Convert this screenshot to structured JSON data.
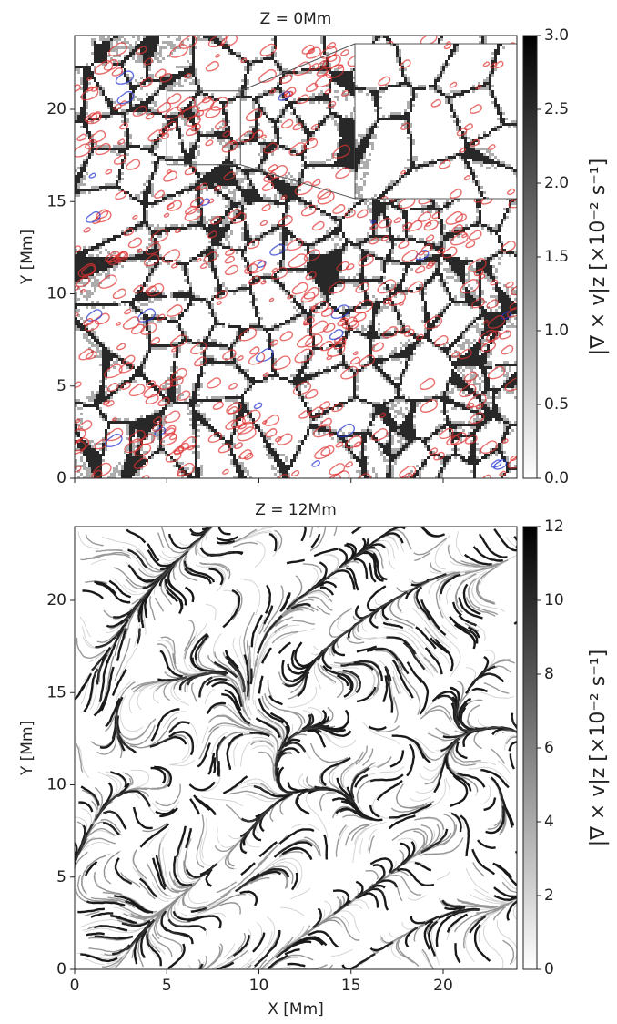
{
  "chart_data": [
    {
      "type": "heatmap",
      "title": "Z = 0Mm",
      "ylabel": "Y [Mm]",
      "xlim": [
        0,
        24
      ],
      "ylim": [
        0,
        24
      ],
      "yticks": [
        0,
        5,
        10,
        15,
        20
      ],
      "contour_colors": [
        "#e03030",
        "#2030d0"
      ],
      "colorbar": {
        "label": "|∇ × v|z [×10⁻² s⁻¹]",
        "lim": [
          0,
          3
        ],
        "ticks": [
          {
            "value": 0,
            "label": "0.0"
          },
          {
            "value": 0.5,
            "label": "0.5"
          },
          {
            "value": 1,
            "label": "1.0"
          },
          {
            "value": 1.5,
            "label": "1.5"
          },
          {
            "value": 2,
            "label": "2.0"
          },
          {
            "value": 2.5,
            "label": "2.5"
          },
          {
            "value": 3,
            "label": "3.0"
          }
        ]
      }
    },
    {
      "type": "heatmap",
      "title": "Z = 12Mm",
      "xlabel": "X [Mm]",
      "ylabel": "Y [Mm]",
      "xlim": [
        0,
        24
      ],
      "ylim": [
        0,
        24
      ],
      "xticks": [
        0,
        5,
        10,
        15,
        20
      ],
      "yticks": [
        0,
        5,
        10,
        15,
        20
      ],
      "colorbar": {
        "label": "|∇ × v|z [×10⁻² s⁻¹]",
        "lim": [
          0,
          12
        ],
        "ticks": [
          0,
          2,
          4,
          6,
          8,
          10,
          12
        ]
      }
    }
  ]
}
